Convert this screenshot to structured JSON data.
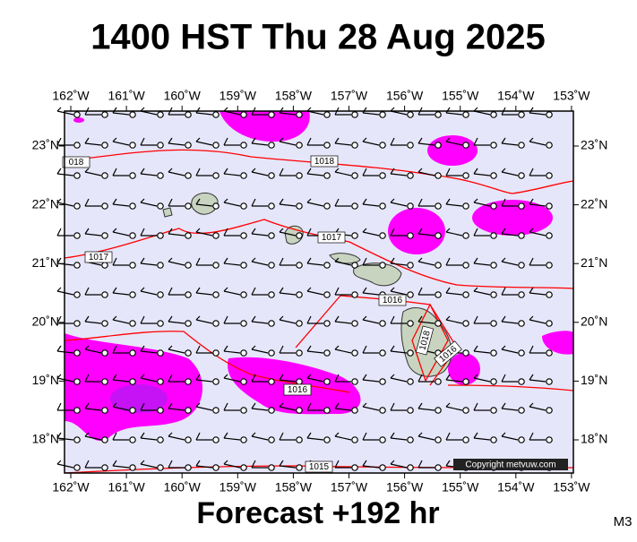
{
  "header": {
    "title": "1400 HST Thu 28 Aug 2025"
  },
  "map": {
    "lon_labels": [
      "162˚W",
      "161˚W",
      "160˚W",
      "159˚W",
      "158˚W",
      "157˚W",
      "156˚W",
      "155˚W",
      "154˚W",
      "153˚W"
    ],
    "lat_labels": [
      "23˚N",
      "22˚N",
      "21˚N",
      "20˚N",
      "19˚N",
      "18˚N"
    ],
    "isobar_labels": [
      "018",
      "1018",
      "1017",
      "1017",
      "1016",
      "1018",
      "1016",
      "1016",
      "1015"
    ],
    "copyright": "Copyright metvuw.com"
  },
  "footer": {
    "forecast": "Forecast +192 hr",
    "model": "M3"
  }
}
